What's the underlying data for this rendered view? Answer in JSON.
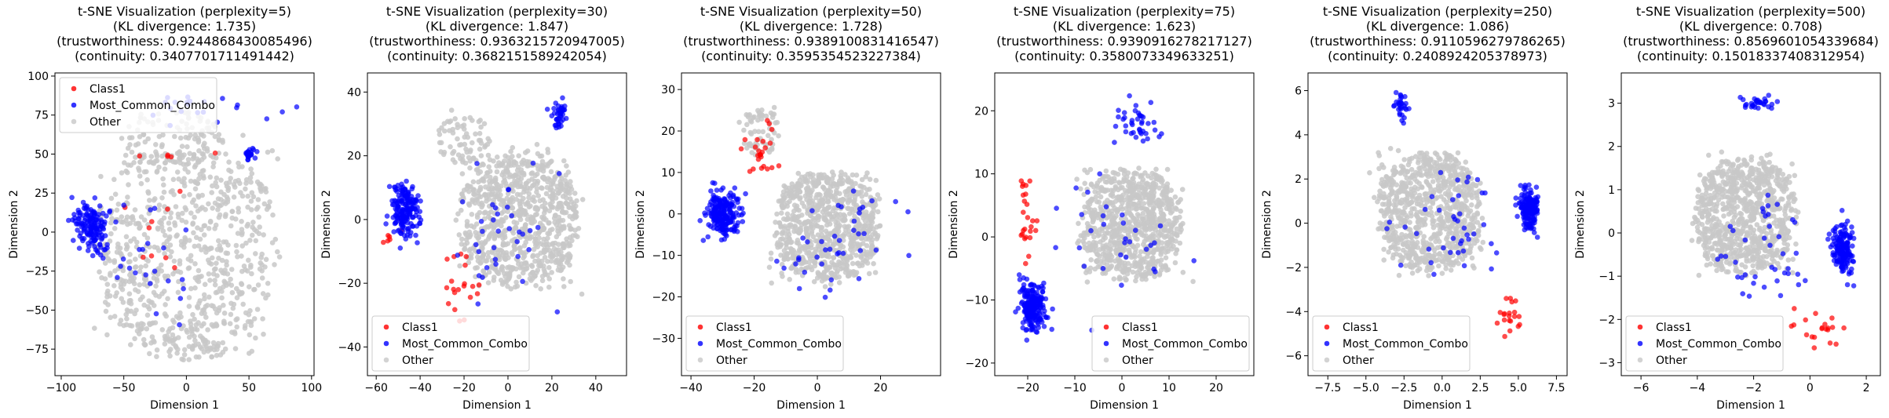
{
  "figure": {
    "background": "#ffffff"
  },
  "legend": {
    "items": [
      {
        "label": "Class1",
        "color": "#ff0000"
      },
      {
        "label": "Most_Common_Combo",
        "color": "#0000ff"
      },
      {
        "label": "Other",
        "color": "#c8c8c8"
      }
    ]
  },
  "chart_data": [
    {
      "type": "scatter",
      "title_lines": [
        "t-SNE Visualization (perplexity=5)",
        "(KL divergence: 1.735)",
        "(trustworthiness: 0.9244868430085496)",
        "(continuity: 0.3407701711491442)"
      ],
      "xlabel": "Dimension 1",
      "ylabel": "Dimension 2",
      "xlim": [
        -105,
        102
      ],
      "ylim": [
        -92,
        102
      ],
      "xticks": [
        -100,
        -50,
        0,
        50,
        100
      ],
      "yticks": [
        -75,
        -50,
        -25,
        0,
        25,
        50,
        75,
        100
      ],
      "legend_position": "upper left",
      "clusters": {
        "other": [
          [
            0,
            -10,
            75,
            70,
            900,
            0.35
          ],
          [
            -10,
            60,
            40,
            18,
            120,
            0.0
          ],
          [
            0,
            -75,
            35,
            8,
            60,
            0.0
          ]
        ],
        "blue": [
          [
            -75,
            3,
            12,
            14,
            150,
            -0.2
          ],
          [
            50,
            50,
            4,
            5,
            25,
            0.0
          ],
          [
            10,
            80,
            60,
            10,
            20,
            0.0
          ],
          [
            -30,
            -15,
            40,
            40,
            25,
            0.0
          ]
        ],
        "red": [
          [
            -20,
            20,
            50,
            40,
            14,
            0.0
          ]
        ]
      }
    },
    {
      "type": "scatter",
      "title_lines": [
        "t-SNE Visualization (perplexity=30)",
        "(KL divergence: 1.847)",
        "(trustworthiness: 0.9363215720947005)",
        "(continuity: 0.3682151589242054)"
      ],
      "xlabel": "Dimension 1",
      "ylabel": "Dimension 2",
      "xlim": [
        -64,
        54
      ],
      "ylim": [
        -49,
        46
      ],
      "xticks": [
        -60,
        -40,
        -20,
        0,
        20,
        40
      ],
      "yticks": [
        -40,
        -20,
        0,
        20,
        40
      ],
      "legend_position": "lower left",
      "clusters": {
        "other": [
          [
            5,
            0,
            28,
            22,
            1000,
            0.0
          ],
          [
            -20,
            25,
            12,
            8,
            80,
            0.0
          ]
        ],
        "blue": [
          [
            -47,
            3,
            6,
            8,
            180,
            0.0
          ],
          [
            23,
            33,
            3,
            4,
            40,
            0.0
          ],
          [
            0,
            -5,
            25,
            20,
            35,
            0.0
          ]
        ],
        "red": [
          [
            -25,
            -20,
            12,
            15,
            20,
            0.0
          ],
          [
            -55,
            -5,
            5,
            5,
            6,
            0.0
          ]
        ]
      }
    },
    {
      "type": "scatter",
      "title_lines": [
        "t-SNE Visualization (perplexity=50)",
        "(KL divergence: 1.728)",
        "(trustworthiness: 0.9389100831416547)",
        "(continuity: 0.3595354523227384)"
      ],
      "xlabel": "Dimension 1",
      "ylabel": "Dimension 2",
      "xlim": [
        -43,
        39
      ],
      "ylim": [
        -39,
        34
      ],
      "xticks": [
        -40,
        -20,
        0,
        20
      ],
      "yticks": [
        -30,
        -20,
        -10,
        0,
        10,
        20,
        30
      ],
      "legend_position": "lower left",
      "clusters": {
        "other": [
          [
            3,
            -3,
            17,
            14,
            1000,
            0.0
          ],
          [
            -18,
            20,
            6,
            6,
            80,
            0.0
          ]
        ],
        "blue": [
          [
            -30,
            0,
            5,
            5,
            220,
            0.0
          ],
          [
            5,
            -5,
            18,
            15,
            40,
            0.0
          ]
        ],
        "red": [
          [
            -18,
            15,
            5,
            8,
            25,
            0.0
          ]
        ]
      }
    },
    {
      "type": "scatter",
      "title_lines": [
        "t-SNE Visualization (perplexity=75)",
        "(KL divergence: 1.623)",
        "(trustworthiness: 0.9390916278217127)",
        "(continuity: 0.3580073349633251)"
      ],
      "xlabel": "Dimension 1",
      "ylabel": "Dimension 2",
      "xlim": [
        -27,
        28
      ],
      "ylim": [
        -22,
        26
      ],
      "xticks": [
        -20,
        -10,
        0,
        10,
        20
      ],
      "yticks": [
        -20,
        -10,
        0,
        10,
        20
      ],
      "legend_position": "lower right",
      "clusters": {
        "other": [
          [
            2,
            2,
            11,
            9,
            1000,
            0.0
          ]
        ],
        "blue": [
          [
            -19,
            -11,
            2.5,
            3.5,
            200,
            0.0
          ],
          [
            3,
            18,
            4,
            3,
            40,
            0.0
          ],
          [
            0,
            0,
            12,
            10,
            30,
            0.0
          ]
        ],
        "red": [
          [
            -20,
            4,
            2,
            6,
            25,
            0.0
          ]
        ]
      }
    },
    {
      "type": "scatter",
      "title_lines": [
        "t-SNE Visualization (perplexity=250)",
        "(KL divergence: 1.086)",
        "(trustworthiness: 0.9110596279786265)",
        "(continuity: 0.2408924205378973)"
      ],
      "xlabel": "Dimension 1",
      "ylabel": "Dimension 2",
      "xlim": [
        -8.8,
        8.2
      ],
      "ylim": [
        -6.9,
        6.8
      ],
      "xticks": [
        -7.5,
        -5.0,
        -2.5,
        0.0,
        2.5,
        5.0,
        7.5
      ],
      "yticks": [
        -6,
        -4,
        -2,
        0,
        2,
        4,
        6
      ],
      "legend_position": "lower left",
      "clusters": {
        "other": [
          [
            -0.8,
            0.5,
            3.5,
            2.8,
            1000,
            0.0
          ]
        ],
        "blue": [
          [
            5.7,
            0.6,
            0.6,
            0.9,
            170,
            0.0
          ],
          [
            -2.6,
            5.3,
            0.5,
            0.5,
            30,
            0.0
          ],
          [
            0,
            0,
            3,
            2.5,
            40,
            0.0
          ]
        ],
        "red": [
          [
            4.5,
            -4.2,
            0.8,
            0.9,
            20,
            0.0
          ]
        ]
      }
    },
    {
      "type": "scatter",
      "title_lines": [
        "t-SNE Visualization (perplexity=500)",
        "(KL divergence: 0.708)",
        "(trustworthiness: 0.8569601054339684)",
        "(continuity: 0.15018337408312954)"
      ],
      "xlabel": "Dimension 1",
      "ylabel": "Dimension 2",
      "xlim": [
        -6.7,
        2.5
      ],
      "ylim": [
        -3.3,
        3.7
      ],
      "xticks": [
        -6,
        -4,
        -2,
        0,
        2
      ],
      "yticks": [
        -3,
        -2,
        -1,
        0,
        1,
        2,
        3
      ],
      "legend_position": "lower left",
      "clusters": {
        "other": [
          [
            -2.3,
            0.4,
            1.9,
            1.4,
            1000,
            0.0
          ]
        ],
        "blue": [
          [
            1.2,
            -0.4,
            0.35,
            0.5,
            160,
            0.0
          ],
          [
            -1.8,
            3.0,
            0.6,
            0.15,
            30,
            0.0
          ],
          [
            -1.5,
            -0.5,
            1.5,
            1.2,
            40,
            0.0
          ]
        ],
        "red": [
          [
            0.2,
            -2.2,
            0.8,
            0.5,
            20,
            0.0
          ]
        ]
      }
    }
  ]
}
